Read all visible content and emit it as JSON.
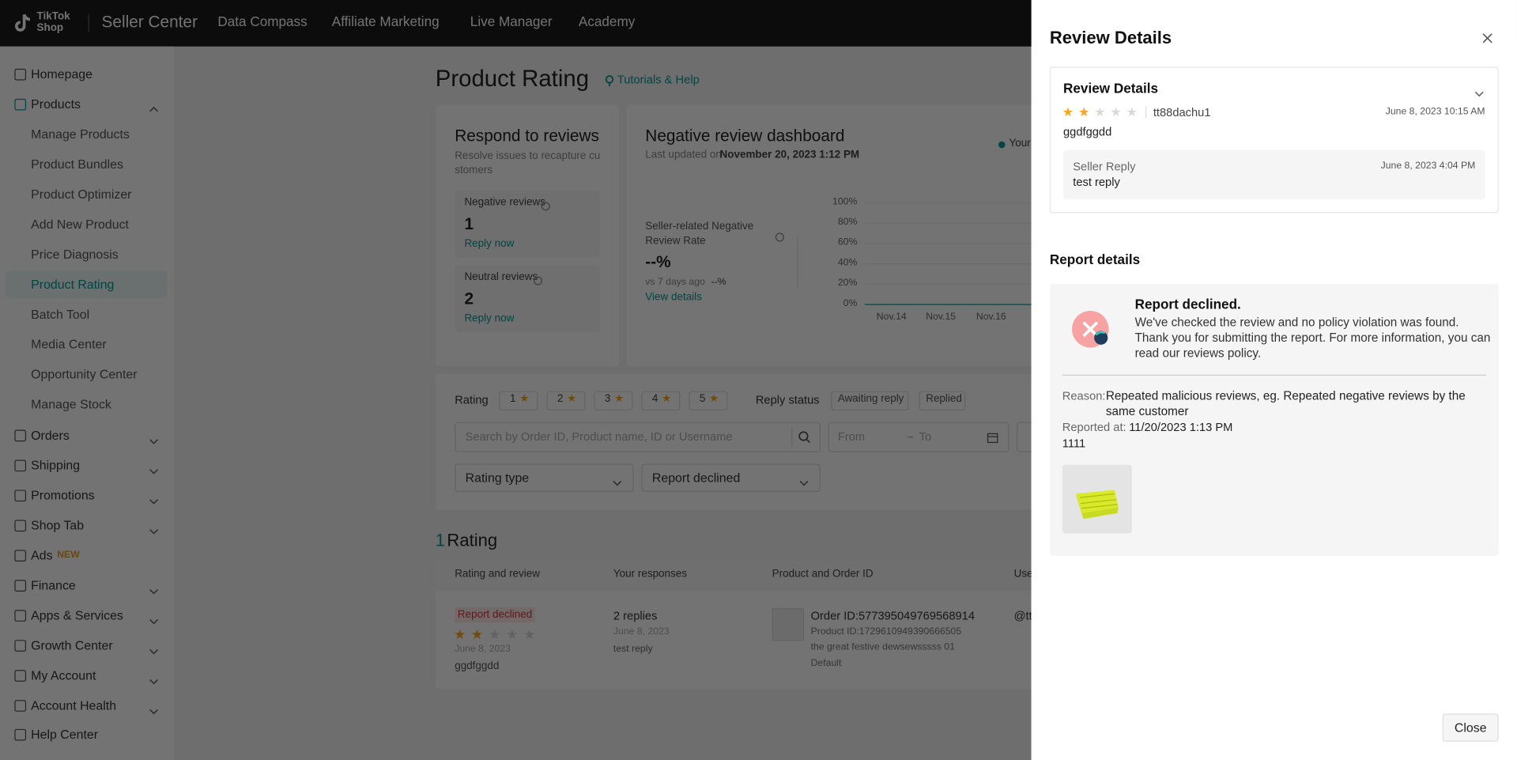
{
  "topbar": {
    "logo_line1": "TikTok",
    "logo_line2": "Shop",
    "brand": "Seller Center",
    "nav": [
      "Data Compass",
      "Affiliate Marketing",
      "Live Manager",
      "Academy"
    ]
  },
  "sidebar": {
    "top": [
      "Homepage",
      "Products"
    ],
    "products_children": [
      "Manage Products",
      "Product Bundles",
      "Product Optimizer",
      "Add New Product",
      "Price Diagnosis",
      "Product Rating",
      "Batch Tool",
      "Media Center",
      "Opportunity Center",
      "Manage Stock"
    ],
    "sections": [
      "Orders",
      "Shipping",
      "Promotions",
      "Shop Tab",
      "Ads",
      "Finance",
      "Apps & Services",
      "Growth Center",
      "My Account",
      "Account Health",
      "Help Center"
    ],
    "ads_badge": "NEW"
  },
  "page": {
    "title": "Product Rating",
    "help": "Tutorials & Help",
    "respond": {
      "title": "Respond to reviews",
      "subtitle": "Resolve issues to recapture customers",
      "cards": [
        {
          "label": "Negative reviews",
          "count": "1",
          "action": "Reply now"
        },
        {
          "label": "Neutral reviews",
          "count": "2",
          "action": "Reply now"
        }
      ]
    },
    "dashboard": {
      "title": "Negative review dashboard",
      "updated_label": "Last updated on",
      "updated": "November 20, 2023 1:12 PM",
      "legend": "Your",
      "metric_label": "Seller-related Negative Review Rate",
      "metric_value": "--%",
      "compare_label": "vs 7 days ago",
      "compare_value": "--%",
      "link": "View details",
      "yticks": [
        "100%",
        "80%",
        "60%",
        "40%",
        "20%",
        "0%"
      ],
      "xticks": [
        "Nov.14",
        "Nov.15",
        "Nov.16"
      ]
    },
    "filters": {
      "rating_label": "Rating",
      "ratings": [
        "1",
        "2",
        "3",
        "4",
        "5"
      ],
      "reply_label": "Reply status",
      "reply_options": [
        "Awaiting reply",
        "Replied"
      ],
      "search_placeholder": "Search by Order ID, Product name, ID or Username",
      "date_from": "From",
      "date_to": "To",
      "rating_type": "Rating type",
      "report_status": "Report declined"
    },
    "results": {
      "count": "1",
      "label": "Rating",
      "columns": [
        "Rating and review",
        "Your responses",
        "Product and Order ID",
        "Use"
      ],
      "row": {
        "status": "Report declined",
        "rating": 2,
        "date": "June 8, 2023",
        "review": "ggdfggdd",
        "replies": "2 replies",
        "reply_date": "June 8, 2023",
        "reply_text": "test reply",
        "order": "Order ID:577395049769568914",
        "product_id": "Product ID:1729610949390666505",
        "product_name": "the great festive dewsewsssss 01",
        "variant": "Default",
        "user": "@tt"
      }
    }
  },
  "drawer": {
    "title": "Review Details",
    "section_title": "Review Details",
    "rating": 2,
    "username": "tt88dachu1",
    "review_time": "June 8, 2023 10:15 AM",
    "review_text": "ggdfggdd",
    "reply_label": "Seller Reply",
    "reply_time": "June 8, 2023 4:04 PM",
    "reply_text": "test reply",
    "report_title": "Report details",
    "report_status": "Report declined.",
    "report_message": "We've checked the review and no policy violation was found. Thank you for submitting the report. For more information, you can read our reviews policy.",
    "reason_label": "Reason:",
    "reason": "Repeated malicious reviews, eg. Repeated negative reviews by the same customer",
    "reported_at_label": "Reported at:",
    "reported_at": "11/20/2023 1:13 PM",
    "note": "1111",
    "close": "Close"
  }
}
